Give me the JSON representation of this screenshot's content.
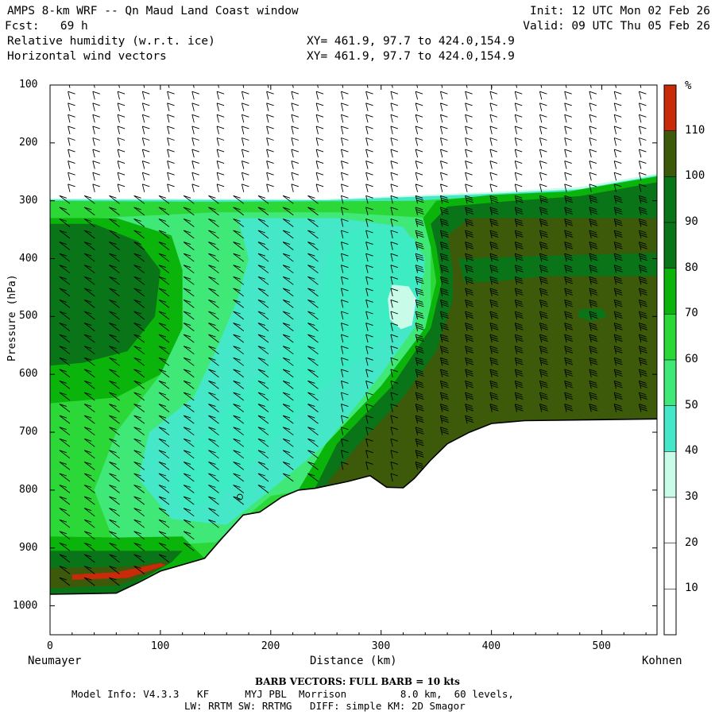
{
  "header": {
    "line1_left": "AMPS 8-km WRF -- Qn Maud Land Coast window",
    "line1_right": "Init: 12 UTC Mon 02 Feb 26",
    "line2_left": "Fcst:   69 h",
    "line2_right": "Valid: 09 UTC Thu 05 Feb 26",
    "line3_left": "Relative humidity (w.r.t. ice)",
    "line3_right": "XY= 461.9, 97.7 to 424.0,154.9",
    "line4_left": "Horizontal wind vectors",
    "line4_right": "XY= 461.9, 97.7 to 424.0,154.9"
  },
  "footer": {
    "barb_note": "BARB VECTORS:  FULL BARB = 10 kts",
    "model_info_1": "Model Info: V4.3.3   KF      MYJ PBL  Morrison         8.0 km,  60 levels,",
    "model_info_2": "LW: RRTM SW: RRTMG   DIFF: simple KM: 2D Smagor"
  },
  "chart_data": {
    "type": "heatmap",
    "subtype": "vertical cross-section contour",
    "xlabel": "Distance (km)",
    "ylabel": "Pressure (hPa)",
    "x_start_label": "Neumayer",
    "x_end_label": "Kohnen",
    "xlim": [
      0,
      550
    ],
    "ylim": [
      1050,
      100
    ],
    "x_ticks": [
      0,
      100,
      200,
      300,
      400,
      500
    ],
    "y_ticks": [
      100,
      200,
      300,
      400,
      500,
      600,
      700,
      800,
      900,
      1000
    ],
    "colorbar": {
      "unit": "%",
      "levels": [
        10,
        20,
        30,
        40,
        50,
        60,
        70,
        80,
        90,
        100,
        110
      ],
      "colors": [
        "#ffffff",
        "#ffffff",
        "#ffffff",
        "#c8fce8",
        "#44e8c8",
        "#40e878",
        "#2cd838",
        "#0ab40a",
        "#0a7418",
        "#3c5a0a",
        "#c82a0a"
      ]
    },
    "terrain_surface": {
      "x_km": [
        0,
        60,
        80,
        100,
        140,
        155,
        175,
        190,
        210,
        225,
        240,
        270,
        290,
        305,
        320,
        330,
        345,
        360,
        380,
        400,
        430,
        550
      ],
      "p_hPa": [
        980,
        978,
        960,
        940,
        918,
        885,
        843,
        838,
        812,
        800,
        797,
        785,
        775,
        795,
        796,
        780,
        748,
        720,
        700,
        685,
        680,
        677
      ]
    },
    "moist_top_hPa": {
      "x_km": [
        0,
        250,
        400,
        550
      ],
      "p_hPa": [
        300,
        300,
        290,
        258
      ]
    },
    "regions": [
      {
        "name": "dark-green core west",
        "rh_range": [
          90,
          100
        ],
        "approx_x_km": [
          0,
          100
        ],
        "approx_p_hPa": [
          340,
          560
        ]
      },
      {
        "name": "dry tongue",
        "rh_range": [
          40,
          60
        ],
        "approx_x_km": [
          100,
          340
        ],
        "approx_p_hPa": [
          340,
          850
        ]
      },
      {
        "name": "driest pocket",
        "rh_range": [
          30,
          40
        ],
        "approx_x_km": [
          300,
          330
        ],
        "approx_p_hPa": [
          440,
          520
        ]
      },
      {
        "name": "near-saturated east",
        "rh_range": [
          100,
          110
        ],
        "approx_x_km": [
          340,
          550
        ],
        "approx_p_hPa": [
          260,
          700
        ]
      },
      {
        "name": "supersaturated strip near surface",
        "rh_range": [
          110,
          120
        ],
        "approx_x_km": [
          20,
          110
        ],
        "approx_p_hPa": [
          925,
          955
        ]
      }
    ],
    "wind_barbs": "Horizontal wind vectors plotted as barbs along vertical columns every ~20 km"
  }
}
